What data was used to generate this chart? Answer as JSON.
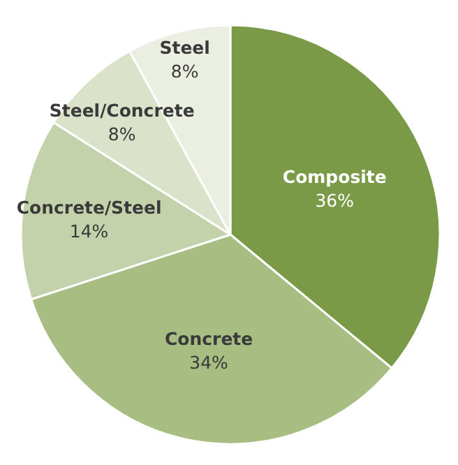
{
  "chart_data": {
    "type": "pie",
    "categories": [
      "Composite",
      "Concrete",
      "Concrete/Steel",
      "Steel/Concrete",
      "Steel"
    ],
    "values": [
      36,
      34,
      14,
      8,
      8
    ],
    "value_labels": [
      "36%",
      "34%",
      "14%",
      "8%",
      "8%"
    ],
    "colors": [
      "#7a9a48",
      "#a8bd82",
      "#c4d2ac",
      "#dae2ca",
      "#ebefe2"
    ]
  }
}
